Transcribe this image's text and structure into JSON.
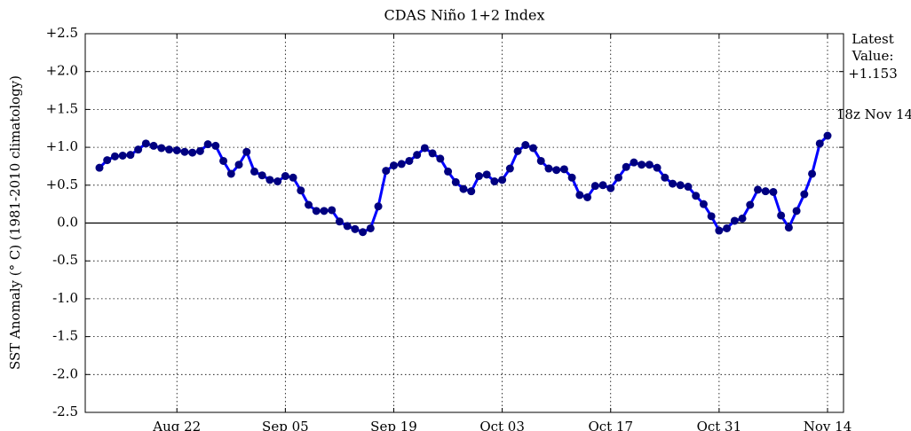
{
  "chart_data": {
    "type": "line",
    "title": "CDAS Niño 1+2 Index",
    "ylabel": "SST Anomaly (° C) (1981-2010 climatology)",
    "annotations": [
      "Latest",
      "Value:",
      "+1.153",
      "18z Nov 14"
    ],
    "x": [
      "Aug 12",
      "Aug 13",
      "Aug 14",
      "Aug 15",
      "Aug 16",
      "Aug 17",
      "Aug 18",
      "Aug 19",
      "Aug 20",
      "Aug 21",
      "Aug 22",
      "Aug 23",
      "Aug 24",
      "Aug 25",
      "Aug 26",
      "Aug 27",
      "Aug 28",
      "Aug 29",
      "Aug 30",
      "Aug 31",
      "Sep 01",
      "Sep 02",
      "Sep 03",
      "Sep 04",
      "Sep 05",
      "Sep 06",
      "Sep 07",
      "Sep 08",
      "Sep 09",
      "Sep 10",
      "Sep 11",
      "Sep 12",
      "Sep 13",
      "Sep 14",
      "Sep 15",
      "Sep 16",
      "Sep 17",
      "Sep 18",
      "Sep 19",
      "Sep 20",
      "Sep 21",
      "Sep 22",
      "Sep 23",
      "Sep 24",
      "Sep 25",
      "Sep 26",
      "Sep 27",
      "Sep 28",
      "Sep 29",
      "Sep 30",
      "Oct 01",
      "Oct 02",
      "Oct 03",
      "Oct 04",
      "Oct 05",
      "Oct 06",
      "Oct 07",
      "Oct 08",
      "Oct 09",
      "Oct 10",
      "Oct 11",
      "Oct 12",
      "Oct 13",
      "Oct 14",
      "Oct 15",
      "Oct 16",
      "Oct 17",
      "Oct 18",
      "Oct 19",
      "Oct 20",
      "Oct 21",
      "Oct 22",
      "Oct 23",
      "Oct 24",
      "Oct 25",
      "Oct 26",
      "Oct 27",
      "Oct 28",
      "Oct 29",
      "Oct 30",
      "Oct 31",
      "Nov 01",
      "Nov 02",
      "Nov 03",
      "Nov 04",
      "Nov 05",
      "Nov 06",
      "Nov 07",
      "Nov 08",
      "Nov 09",
      "Nov 10",
      "Nov 11",
      "Nov 12",
      "Nov 13",
      "Nov 14"
    ],
    "series": [
      {
        "color": "#0000ff",
        "marker_color": "#000080",
        "values": [
          0.73,
          0.83,
          0.88,
          0.89,
          0.9,
          0.97,
          1.05,
          1.02,
          0.99,
          0.97,
          0.96,
          0.94,
          0.93,
          0.95,
          1.04,
          1.02,
          0.82,
          0.65,
          0.77,
          0.94,
          0.68,
          0.63,
          0.57,
          0.55,
          0.62,
          0.6,
          0.43,
          0.24,
          0.16,
          0.16,
          0.17,
          0.02,
          -0.04,
          -0.08,
          -0.12,
          -0.07,
          0.22,
          0.69,
          0.76,
          0.78,
          0.82,
          0.9,
          0.99,
          0.92,
          0.85,
          0.68,
          0.54,
          0.45,
          0.42,
          0.62,
          0.64,
          0.55,
          0.57,
          0.72,
          0.95,
          1.03,
          0.99,
          0.82,
          0.72,
          0.7,
          0.71,
          0.6,
          0.37,
          0.34,
          0.49,
          0.5,
          0.46,
          0.6,
          0.74,
          0.8,
          0.77,
          0.77,
          0.73,
          0.6,
          0.52,
          0.5,
          0.48,
          0.36,
          0.25,
          0.09,
          -0.1,
          -0.07,
          0.03,
          0.06,
          0.24,
          0.44,
          0.42,
          0.41,
          0.1,
          -0.06,
          0.16,
          0.38,
          0.65,
          1.05,
          1.153
        ]
      }
    ],
    "xticks": [
      "Aug 22",
      "Sep 05",
      "Sep 19",
      "Oct 03",
      "Oct 17",
      "Oct 31",
      "Nov 14"
    ],
    "ylim": [
      -2.5,
      2.5
    ],
    "yticks": [
      {
        "value": -2.5,
        "label": "-2.5"
      },
      {
        "value": -2.0,
        "label": "-2.0"
      },
      {
        "value": -1.5,
        "label": "-1.5"
      },
      {
        "value": -1.0,
        "label": "-1.0"
      },
      {
        "value": -0.5,
        "label": "-0.5"
      },
      {
        "value": 0,
        "label": "0.0"
      },
      {
        "value": 0.5,
        "label": "+0.5"
      },
      {
        "value": 1.0,
        "label": "+1.0"
      },
      {
        "value": 1.5,
        "label": "+1.5"
      },
      {
        "value": 2.0,
        "label": "+2.0"
      },
      {
        "value": 2.5,
        "label": "+2.5"
      }
    ],
    "grid": true,
    "zero_line": true
  }
}
